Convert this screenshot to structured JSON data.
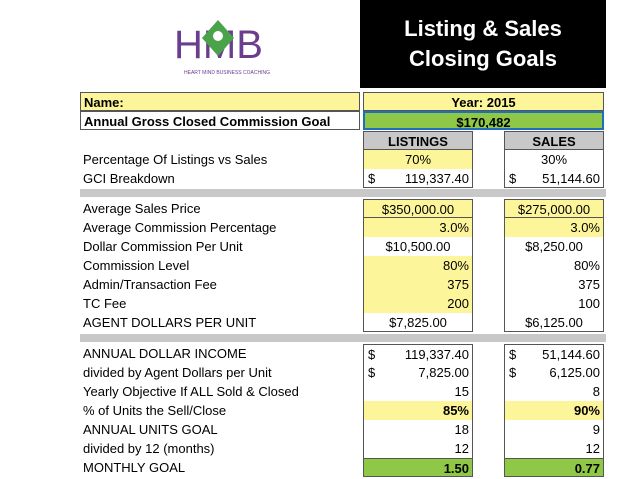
{
  "logo": {
    "letters": "HMB",
    "tagline": "HEART MIND BUSINESS COACHING",
    "colors": {
      "purple": "#6a3d8f",
      "green": "#4aa24a"
    }
  },
  "title": {
    "line1": "Listing & Sales",
    "line2": "Closing Goals"
  },
  "name_label": "Name:",
  "year": "Year: 2015",
  "gci_goal_label": "Annual Gross Closed Commission Goal",
  "gci_goal_value": "$170,482",
  "col_listings": "LISTINGS",
  "col_sales": "SALES",
  "rows_a": [
    {
      "label": "Percentage Of Listings vs Sales",
      "listings": "70%",
      "sales": "30%"
    },
    {
      "label": "GCI Breakdown",
      "listings_cur": "$",
      "listings": "119,337.40",
      "sales_cur": "$",
      "sales": "51,144.60"
    }
  ],
  "rows_b": [
    {
      "label": "Average Sales Price",
      "listings": "$350,000.00",
      "sales": "$275,000.00"
    },
    {
      "label": "Average Commission Percentage",
      "listings": "3.0%",
      "sales": "3.0%"
    },
    {
      "label": "Dollar Commission Per Unit",
      "listings": "$10,500.00",
      "sales": "$8,250.00"
    },
    {
      "label": "Commission Level",
      "listings": "80%",
      "sales": "80%"
    },
    {
      "label": "Admin/Transaction Fee",
      "listings": "375",
      "sales": "375"
    },
    {
      "label": "TC Fee",
      "listings": "200",
      "sales": "100"
    },
    {
      "label": "AGENT DOLLARS PER UNIT",
      "listings": "$7,825.00",
      "sales": "$6,125.00"
    }
  ],
  "rows_c": [
    {
      "label": "ANNUAL DOLLAR INCOME",
      "listings_cur": "$",
      "listings": "119,337.40",
      "sales_cur": "$",
      "sales": "51,144.60"
    },
    {
      "label": "divided by Agent Dollars per Unit",
      "listings_cur": "$",
      "listings": "7,825.00",
      "sales_cur": "$",
      "sales": "6,125.00"
    },
    {
      "label": "Yearly Objective If ALL Sold & Closed",
      "listings": "15",
      "sales": "8"
    },
    {
      "label": "% of Units the Sell/Close",
      "listings": "85%",
      "sales": "90%"
    },
    {
      "label": "ANNUAL UNITS GOAL",
      "listings": "18",
      "sales": "9"
    },
    {
      "label": "divided by  12 (months)",
      "listings": "12",
      "sales": "12"
    },
    {
      "label": "MONTHLY GOAL",
      "listings": "1.50",
      "sales": "0.77"
    }
  ]
}
